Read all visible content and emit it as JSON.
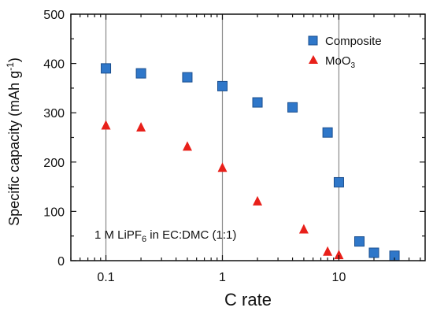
{
  "chart_data": {
    "type": "scatter",
    "xlabel": "C rate",
    "ylabel": "Specific capacity (mAh g",
    "ylabel_sup": "-1",
    "ylabel_end": ")",
    "x_scale": "log",
    "xlim": [
      0.05,
      55
    ],
    "ylim": [
      0,
      500
    ],
    "x_ticks": [
      {
        "value": 0.1,
        "label": "0.1"
      },
      {
        "value": 1,
        "label": "1"
      },
      {
        "value": 10,
        "label": "10"
      }
    ],
    "y_ticks": [
      {
        "value": 0,
        "label": "0"
      },
      {
        "value": 100,
        "label": "100"
      },
      {
        "value": 200,
        "label": "200"
      },
      {
        "value": 300,
        "label": "300"
      },
      {
        "value": 400,
        "label": "400"
      },
      {
        "value": 500,
        "label": "500"
      }
    ],
    "vertical_lines": [
      0.1,
      1,
      10
    ],
    "legend_position": "top-right",
    "series": [
      {
        "name": "Composite",
        "marker": "square",
        "color": "#2f77c9",
        "edge_color": "#1b4f8f",
        "points": [
          {
            "x": 0.1,
            "y": 390
          },
          {
            "x": 0.2,
            "y": 380
          },
          {
            "x": 0.5,
            "y": 372
          },
          {
            "x": 1,
            "y": 354
          },
          {
            "x": 2,
            "y": 321
          },
          {
            "x": 4,
            "y": 311
          },
          {
            "x": 8,
            "y": 260
          },
          {
            "x": 10,
            "y": 159
          },
          {
            "x": 15,
            "y": 39
          },
          {
            "x": 20,
            "y": 16
          },
          {
            "x": 30,
            "y": 10
          }
        ]
      },
      {
        "name": "MoO",
        "name_sub": "3",
        "marker": "triangle",
        "color": "#e8201a",
        "points": [
          {
            "x": 0.1,
            "y": 274
          },
          {
            "x": 0.2,
            "y": 270
          },
          {
            "x": 0.5,
            "y": 231
          },
          {
            "x": 1,
            "y": 188
          },
          {
            "x": 2,
            "y": 120
          },
          {
            "x": 5,
            "y": 63
          },
          {
            "x": 8,
            "y": 18
          },
          {
            "x": 10,
            "y": 11
          }
        ]
      }
    ],
    "annotation": {
      "prefix": "1 M  LiPF",
      "sub": "6",
      "suffix": " in EC:DMC (1:1)"
    }
  }
}
